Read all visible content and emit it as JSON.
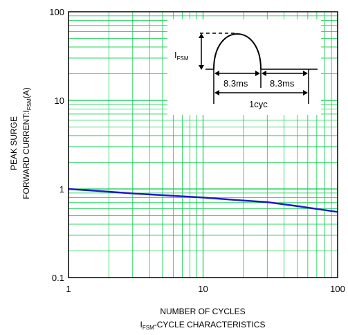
{
  "chart_data": {
    "type": "line",
    "title": "I FSM-CYCLE CHARACTERISTICS",
    "title_parts": {
      "base": "I",
      "sub": "FSM",
      "rest": "-CYCLE CHARACTERISTICS"
    },
    "xlabel": "NUMBER OF CYCLES",
    "ylabel_line1": "PEAK SURGE",
    "ylabel_line2_parts": {
      "base": "FORWARD CURRENT:I",
      "sub": "FSM",
      "rest": "(A)"
    },
    "x_scale": "log",
    "y_scale": "log",
    "xlim": [
      1,
      100
    ],
    "ylim": [
      0.1,
      100
    ],
    "x_ticks": [
      {
        "value": 1,
        "label": "1"
      },
      {
        "value": 10,
        "label": "10"
      },
      {
        "value": 100,
        "label": "100"
      }
    ],
    "y_ticks": [
      {
        "value": 100,
        "label": "100"
      },
      {
        "value": 10,
        "label": "10"
      },
      {
        "value": 1,
        "label": "1"
      },
      {
        "value": 0.1,
        "label": "0.1"
      }
    ],
    "grid": true,
    "grid_color": "#00cc44",
    "line_color": "#1a1acc",
    "series": [
      {
        "x": [
          1,
          2,
          3,
          5,
          10,
          20,
          30,
          50,
          100
        ],
        "values": [
          1.0,
          0.93,
          0.89,
          0.85,
          0.8,
          0.74,
          0.71,
          0.64,
          0.55
        ]
      }
    ],
    "inset": {
      "ifsm_parts": {
        "base": "I",
        "sub": "FSM"
      },
      "half_period_label": "8.3ms",
      "half_period_label_2": "8.3ms",
      "cycle_label": "1cyc"
    }
  }
}
